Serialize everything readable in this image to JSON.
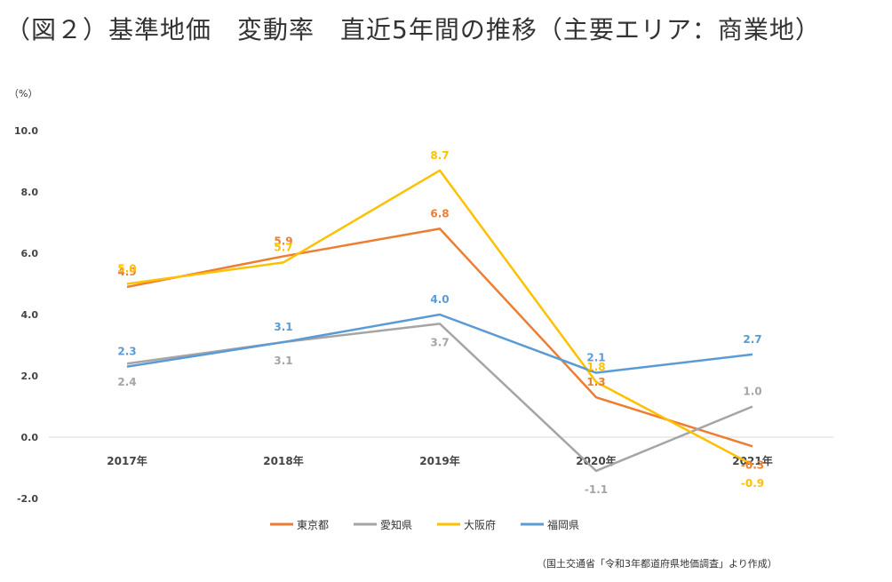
{
  "chart_data": {
    "type": "line",
    "title": "（図２）基準地価　変動率　直近5年間の推移（主要エリア：商業地）",
    "unit_label": "（%）",
    "source_note": "（国土交通省「令和3年都道府県地価調査」より作成）",
    "categories": [
      "2017年",
      "2018年",
      "2019年",
      "2020年",
      "2021年"
    ],
    "y_ticks": [
      "10.0",
      "8.0",
      "6.0",
      "4.0",
      "2.0",
      "0.0",
      "-2.0"
    ],
    "ylim": [
      -2,
      10
    ],
    "grid": false,
    "legend_position": "bottom",
    "series": [
      {
        "name": "東京都",
        "color": "#ED7D31",
        "values": [
          4.9,
          5.9,
          6.8,
          1.3,
          -0.3
        ],
        "labels": [
          "4.9",
          "5.9",
          "6.8",
          "1.3",
          "-0.3"
        ]
      },
      {
        "name": "愛知県",
        "color": "#A5A5A5",
        "values": [
          2.4,
          3.1,
          3.7,
          -1.1,
          1.0
        ],
        "labels": [
          "2.4",
          "3.1",
          "3.7",
          "-1.1",
          "1.0"
        ]
      },
      {
        "name": "大阪府",
        "color": "#FFC000",
        "values": [
          5.0,
          5.7,
          8.7,
          1.8,
          -0.9
        ],
        "labels": [
          "5.0",
          "5.7",
          "8.7",
          "1.8",
          "-0.9"
        ]
      },
      {
        "name": "福岡県",
        "color": "#5B9BD5",
        "values": [
          2.3,
          3.1,
          4.0,
          2.1,
          2.7
        ],
        "labels": [
          "2.3",
          "3.1",
          "4.0",
          "2.1",
          "2.7"
        ]
      }
    ]
  }
}
